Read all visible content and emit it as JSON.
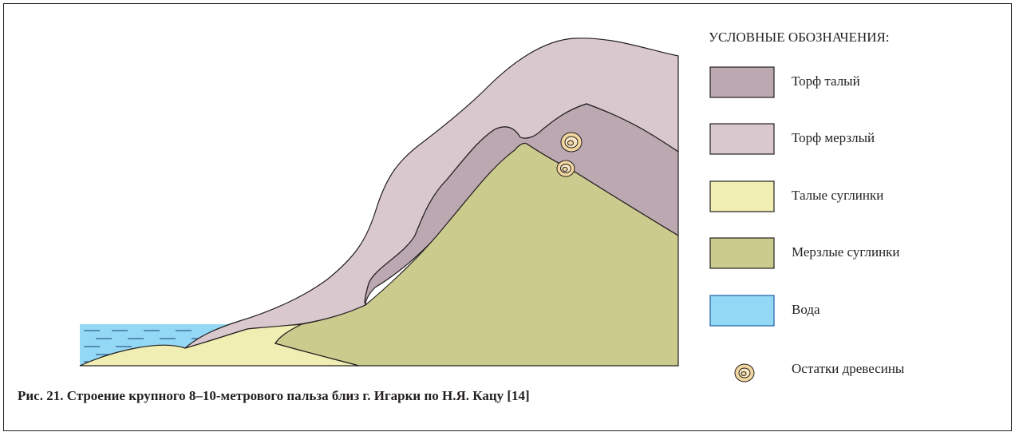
{
  "legend": {
    "title": "УСЛОВНЫЕ ОБОЗНАЧЕНИЯ:",
    "items": [
      {
        "label": "Торф талый"
      },
      {
        "label": "Торф мерзлый"
      },
      {
        "label": "Талые суглинки"
      },
      {
        "label": "Мерзлые суглинки"
      },
      {
        "label": "Вода"
      },
      {
        "label": "Остатки древесины"
      }
    ]
  },
  "caption": "Рис. 21. Строение крупного 8–10-метрового пальза близ г. Игарки по Н.Я. Кацу [14]"
}
